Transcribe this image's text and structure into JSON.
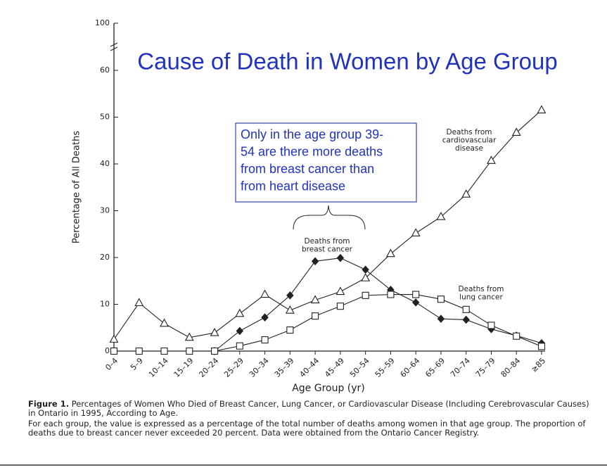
{
  "chart_data": {
    "type": "line",
    "title": "Cause of Death in Women by Age Group",
    "x_label": "Age Group (yr)",
    "y_label": "Percentage of All Deaths",
    "categories": [
      "0–4",
      "5–9",
      "10–14",
      "15–19",
      "20–24",
      "25–29",
      "30–34",
      "35–39",
      "40–44",
      "45–49",
      "50–54",
      "55–59",
      "60–64",
      "65–69",
      "70–74",
      "75–79",
      "80–84",
      "≥85"
    ],
    "series": [
      {
        "label_lines": [
          "Deaths from",
          "cardiovascular",
          "disease"
        ],
        "color": "#222222",
        "marker": "triangle",
        "values": [
          2.5,
          10.3,
          5.9,
          2.9,
          3.9,
          8,
          12.1,
          8.7,
          10.9,
          12.7,
          15.6,
          20.8,
          25.2,
          28.7,
          33.5,
          40.7,
          46.7,
          51.5
        ]
      },
      {
        "label_lines": [
          "Deaths from",
          "breast cancer"
        ],
        "color": "#222222",
        "marker": "diamond",
        "values": [
          null,
          null,
          null,
          null,
          0,
          4.3,
          7.2,
          11.9,
          19.2,
          19.9,
          17.4,
          13.1,
          10.4,
          6.9,
          6.7,
          4.7,
          3.3,
          1.7
        ]
      },
      {
        "label_lines": [
          "Deaths from",
          "lung cancer"
        ],
        "color": "#222222",
        "marker": "square",
        "values": [
          0,
          0,
          0,
          0,
          0,
          1.1,
          2.4,
          4.5,
          7.5,
          9.6,
          11.9,
          12.1,
          12.1,
          11.1,
          8.9,
          5.5,
          3.2,
          1.0
        ]
      }
    ],
    "ylim": [
      0,
      100
    ],
    "yticks": [
      0,
      10,
      20,
      30,
      40,
      50,
      60,
      100
    ],
    "axis_break": true,
    "annotation_lines": [
      "Only in the age group 39-",
      "54 are there more deaths",
      "from breast cancer than",
      "from heart disease"
    ],
    "caption": {
      "label": "Figure 1.",
      "text": "Percentages of Women Who Died of Breast Cancer, Lung Cancer, or Cardiovascular Disease (Including Cerebrovascular Causes) in Ontario in 1995, According to Age.",
      "note": "For each group, the value is expressed as a percentage of the total number of deaths among women in that age group. The proportion of deaths due to breast cancer never exceeded 20 percent. Data were obtained from the Ontario Cancer Registry."
    }
  }
}
